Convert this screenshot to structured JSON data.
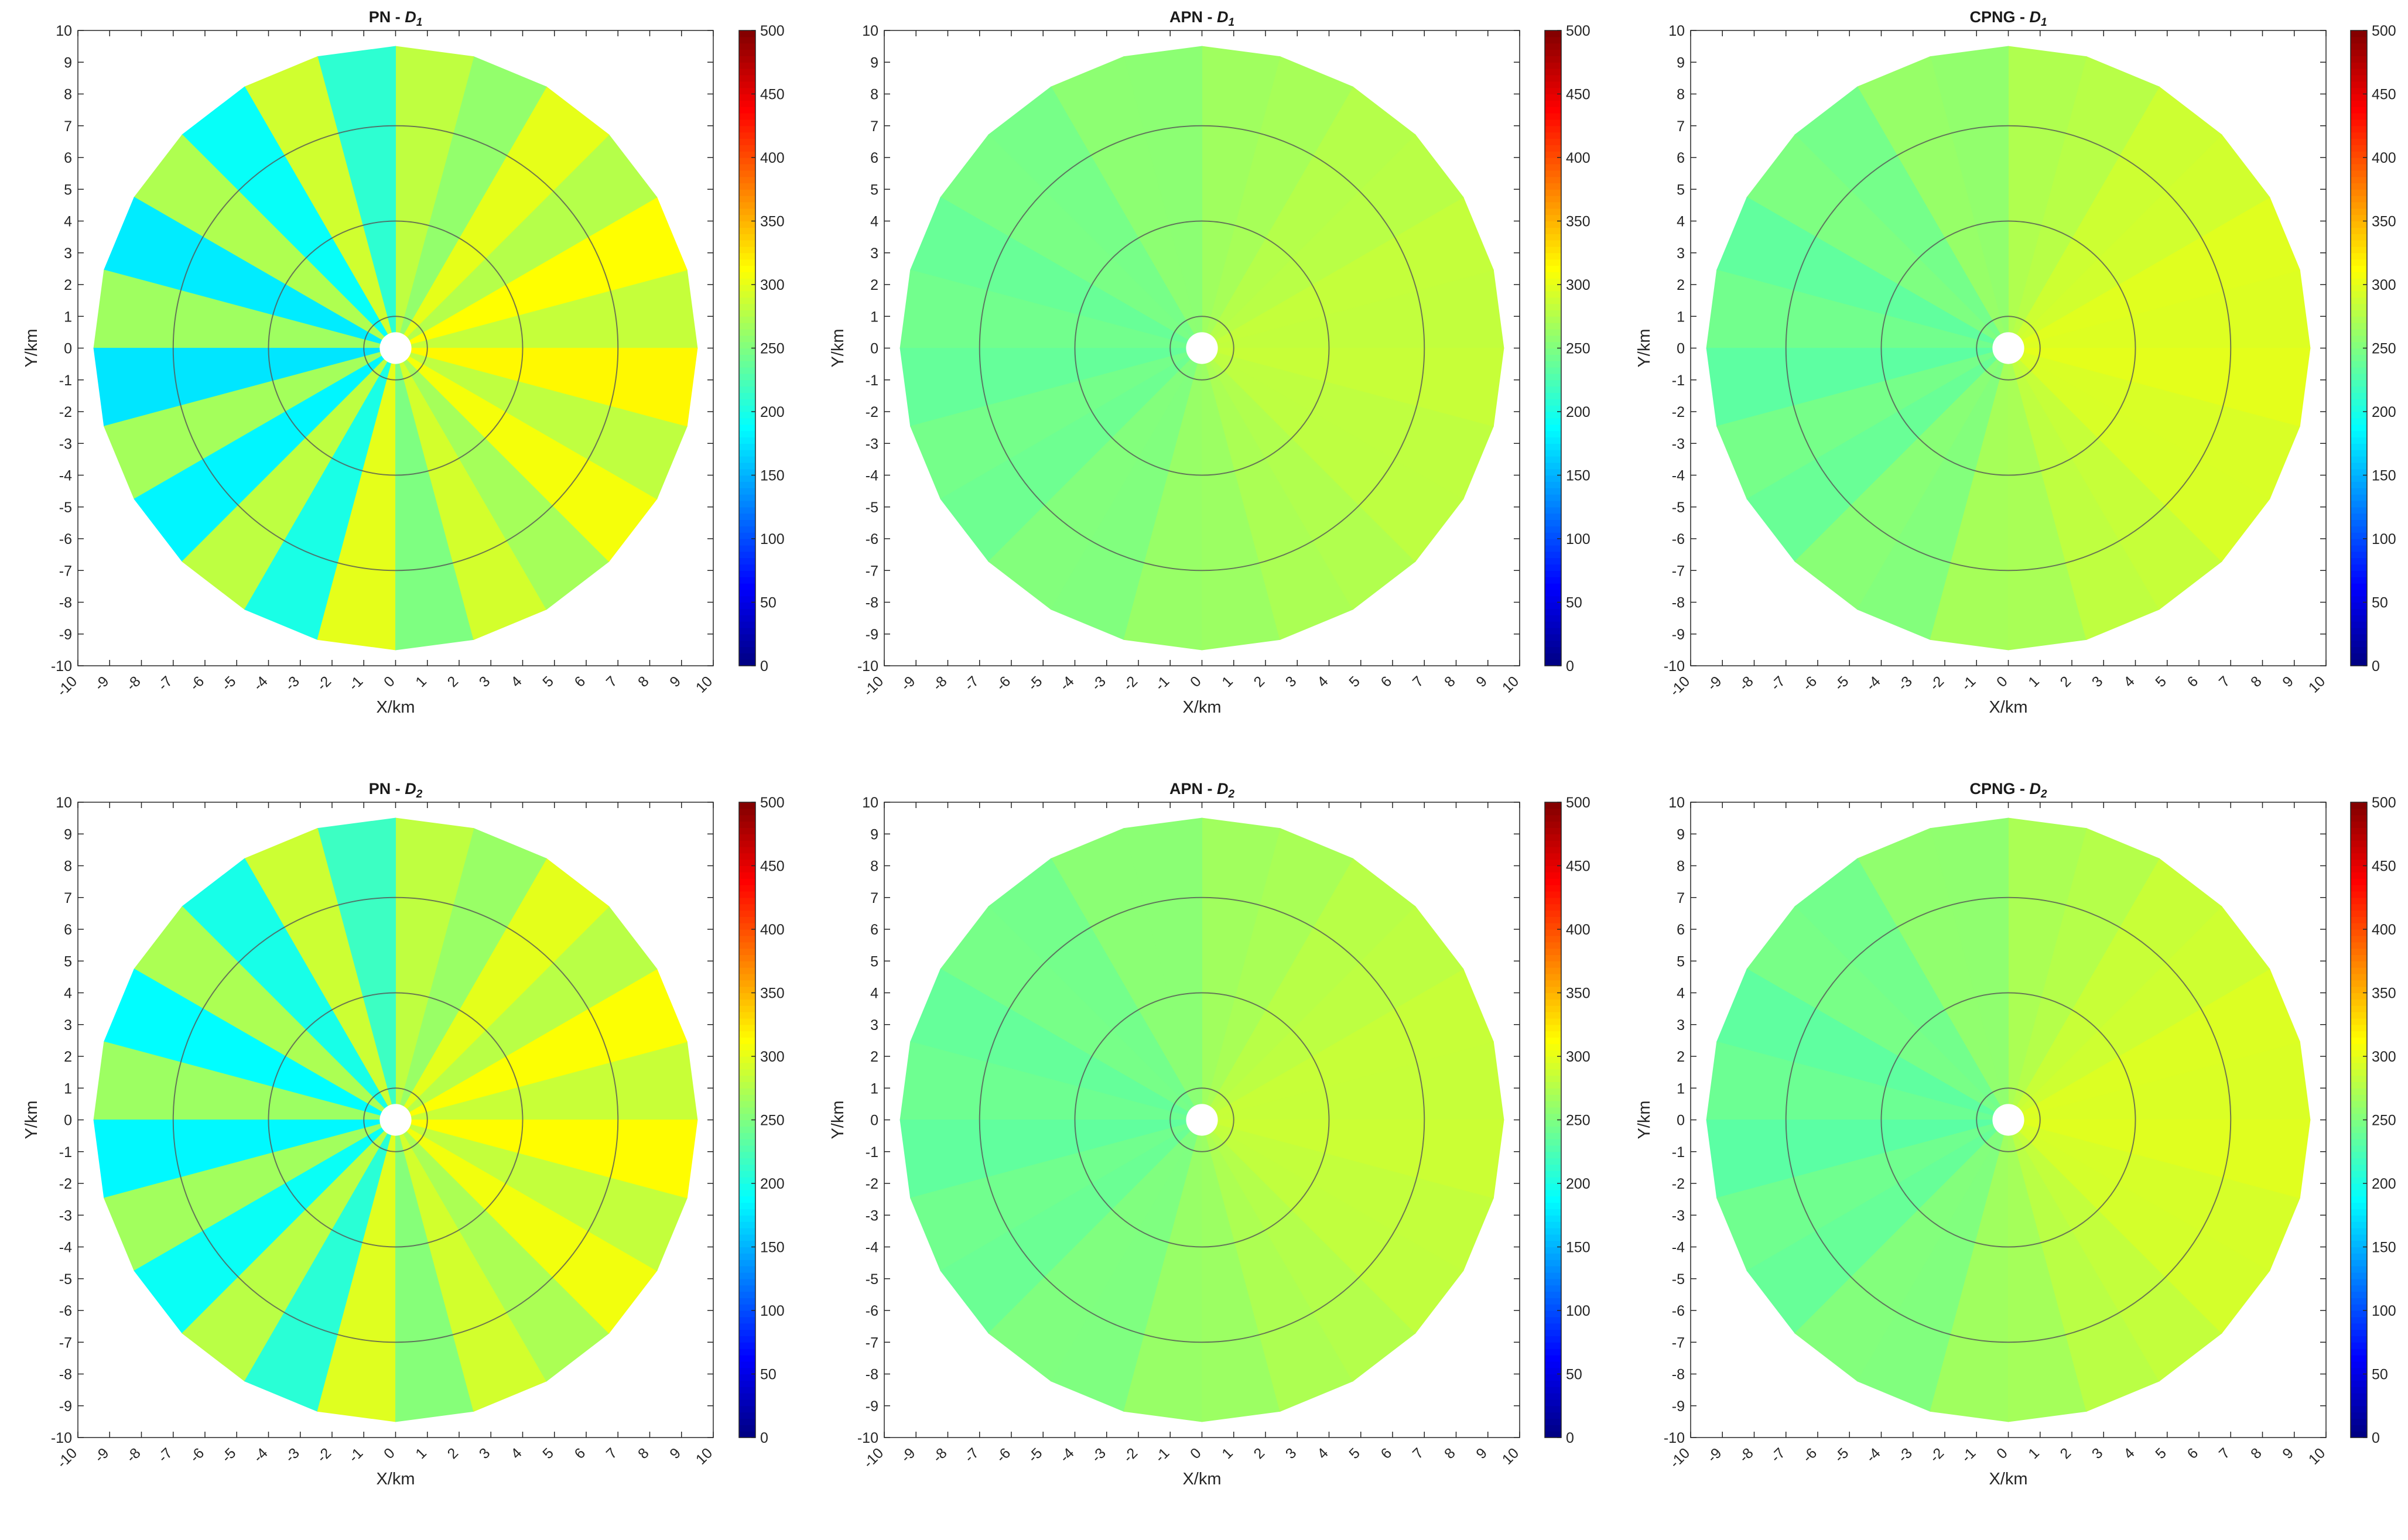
{
  "chart_data": [
    {
      "type": "heatmap",
      "title_main": "PN - ",
      "title_sub": "D",
      "title_index": "1",
      "xlabel": "X/km",
      "ylabel": "Y/km",
      "xlim": [
        -10,
        10
      ],
      "ylim": [
        -10,
        10
      ],
      "colorbar": {
        "min": 0,
        "max": 500,
        "ticks": [
          "0",
          "50",
          "100",
          "150",
          "200",
          "250",
          "300",
          "350",
          "400",
          "450",
          "500"
        ],
        "colormap": "jet"
      },
      "field": {
        "base": 260,
        "trend": 40,
        "ray_amp": 45,
        "rays": 24
      },
      "circles_km": [
        0.5,
        1.0,
        4.0,
        7.0
      ],
      "boundary_km": 9.5
    },
    {
      "type": "heatmap",
      "title_main": "APN - ",
      "title_sub": "D",
      "title_index": "1",
      "xlabel": "X/km",
      "ylabel": "Y/km",
      "xlim": [
        -10,
        10
      ],
      "ylim": [
        -10,
        10
      ],
      "colorbar": {
        "min": 0,
        "max": 500,
        "ticks": [
          "0",
          "50",
          "100",
          "150",
          "200",
          "250",
          "300",
          "350",
          "400",
          "450",
          "500"
        ],
        "colormap": "jet"
      },
      "field": {
        "base": 262,
        "trend": 22,
        "ray_amp": 3,
        "rays": 24
      },
      "circles_km": [
        0.5,
        1.0,
        4.0,
        7.0
      ],
      "boundary_km": 9.5
    },
    {
      "type": "heatmap",
      "title_main": "CPNG - ",
      "title_sub": "D",
      "title_index": "1",
      "xlabel": "X/km",
      "ylabel": "Y/km",
      "xlim": [
        -10,
        10
      ],
      "ylim": [
        -10,
        10
      ],
      "colorbar": {
        "min": 0,
        "max": 500,
        "ticks": [
          "0",
          "50",
          "100",
          "150",
          "200",
          "250",
          "300",
          "350",
          "400",
          "450",
          "500"
        ],
        "colormap": "jet"
      },
      "field": {
        "base": 268,
        "trend": 30,
        "ray_amp": 5,
        "rays": 24
      },
      "circles_km": [
        0.5,
        1.0,
        4.0,
        7.0
      ],
      "boundary_km": 9.5
    },
    {
      "type": "heatmap",
      "title_main": "PN - ",
      "title_sub": "D",
      "title_index": "2",
      "xlabel": "X/km",
      "ylabel": "Y/km",
      "xlim": [
        -10,
        10
      ],
      "ylim": [
        -10,
        10
      ],
      "colorbar": {
        "min": 0,
        "max": 500,
        "ticks": [
          "0",
          "50",
          "100",
          "150",
          "200",
          "250",
          "300",
          "350",
          "400",
          "450",
          "500"
        ],
        "colormap": "jet"
      },
      "field": {
        "base": 262,
        "trend": 38,
        "ray_amp": 40,
        "rays": 24
      },
      "circles_km": [
        0.5,
        1.0,
        4.0,
        7.0
      ],
      "boundary_km": 9.5
    },
    {
      "type": "heatmap",
      "title_main": "APN - ",
      "title_sub": "D",
      "title_index": "2",
      "xlabel": "X/km",
      "ylabel": "Y/km",
      "xlim": [
        -10,
        10
      ],
      "ylim": [
        -10,
        10
      ],
      "colorbar": {
        "min": 0,
        "max": 500,
        "ticks": [
          "0",
          "50",
          "100",
          "150",
          "200",
          "250",
          "300",
          "350",
          "400",
          "450",
          "500"
        ],
        "colormap": "jet"
      },
      "field": {
        "base": 262,
        "trend": 24,
        "ray_amp": 3,
        "rays": 24
      },
      "circles_km": [
        0.5,
        1.0,
        4.0,
        7.0
      ],
      "boundary_km": 9.5
    },
    {
      "type": "heatmap",
      "title_main": "CPNG - ",
      "title_sub": "D",
      "title_index": "2",
      "xlabel": "X/km",
      "ylabel": "Y/km",
      "xlim": [
        -10,
        10
      ],
      "ylim": [
        -10,
        10
      ],
      "colorbar": {
        "min": 0,
        "max": 500,
        "ticks": [
          "0",
          "50",
          "100",
          "150",
          "200",
          "250",
          "300",
          "350",
          "400",
          "450",
          "500"
        ],
        "colormap": "jet"
      },
      "field": {
        "base": 266,
        "trend": 30,
        "ray_amp": 4,
        "rays": 24
      },
      "circles_km": [
        0.5,
        1.0,
        4.0,
        7.0
      ],
      "boundary_km": 9.5
    }
  ]
}
